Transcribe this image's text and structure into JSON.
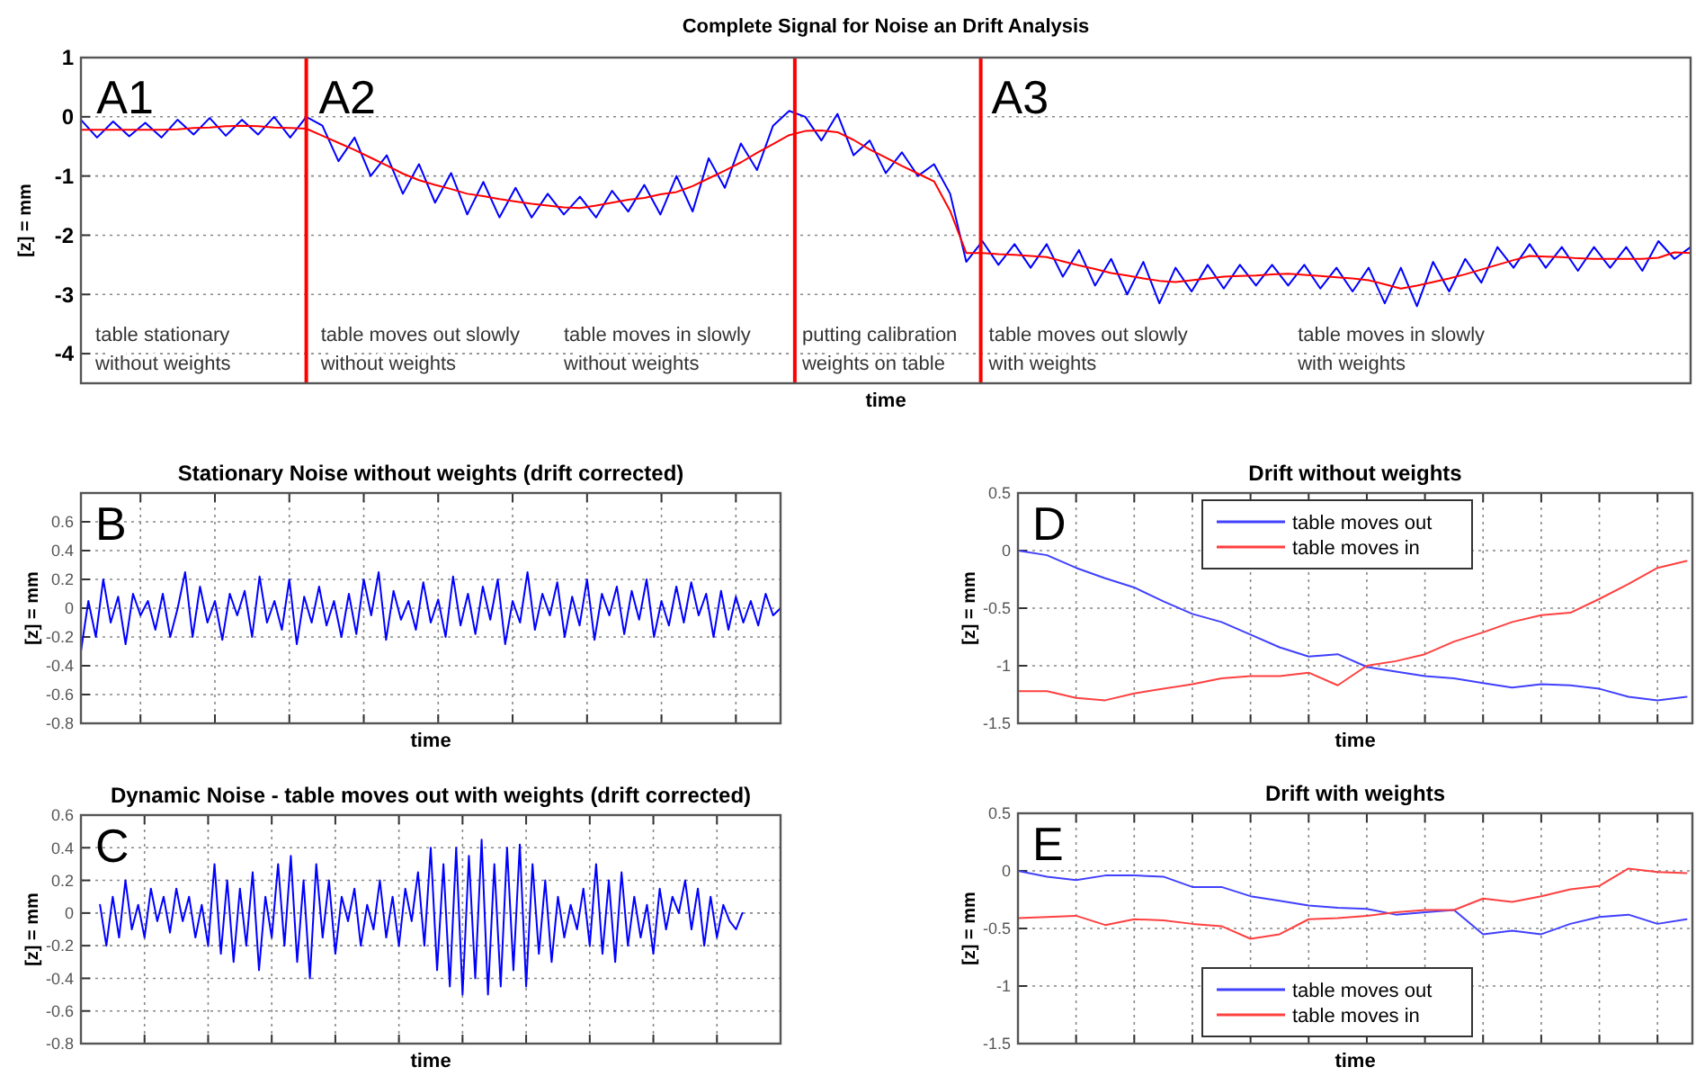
{
  "chart_data": [
    {
      "type": "line",
      "title": "Complete Signal for Noise an Drift Analysis",
      "xlabel": "time",
      "ylabel": "[z] = mm",
      "ylim": [
        -4.5,
        1
      ],
      "yticks": [
        -4,
        -3,
        -2,
        -1,
        0,
        1
      ],
      "grid": "y",
      "tick_labels": "y",
      "categories": [
        null,
        null,
        null,
        null,
        null,
        null,
        null,
        null,
        null,
        null,
        null,
        null,
        null,
        null,
        null,
        null,
        null,
        null,
        null,
        null,
        null,
        null,
        null,
        null,
        null,
        null,
        null,
        null,
        null,
        null,
        null,
        null,
        null,
        null,
        null,
        null,
        null,
        null,
        null,
        null,
        null,
        null,
        null,
        null,
        null,
        null,
        null,
        null,
        null,
        null,
        null,
        null,
        null,
        null,
        null,
        null,
        null,
        null,
        null,
        null,
        null,
        null,
        null,
        null,
        null,
        null,
        null,
        null,
        null,
        null,
        null,
        null,
        null,
        null,
        null,
        null,
        null,
        null,
        null,
        null,
        null,
        null,
        null,
        null,
        null,
        null,
        null,
        null,
        null,
        null,
        null,
        null,
        null,
        null,
        null,
        null,
        null,
        null,
        null,
        null,
        null
      ],
      "series": [
        {
          "color": "#0000ff",
          "values": [
            -0.05,
            -0.35,
            -0.08,
            -0.33,
            -0.1,
            -0.35,
            -0.05,
            -0.3,
            -0.02,
            -0.32,
            -0.05,
            -0.3,
            0.0,
            -0.35,
            0.0,
            -0.15,
            -0.75,
            -0.35,
            -1.0,
            -0.65,
            -1.3,
            -0.8,
            -1.45,
            -0.95,
            -1.65,
            -1.1,
            -1.7,
            -1.2,
            -1.7,
            -1.3,
            -1.65,
            -1.35,
            -1.7,
            -1.25,
            -1.6,
            -1.15,
            -1.65,
            -1.0,
            -1.6,
            -0.7,
            -1.2,
            -0.45,
            -0.9,
            -0.15,
            0.1,
            0.0,
            -0.4,
            0.05,
            -0.65,
            -0.4,
            -0.95,
            -0.6,
            -1.0,
            -0.8,
            -1.3,
            -2.45,
            -2.1,
            -2.5,
            -2.15,
            -2.55,
            -2.15,
            -2.7,
            -2.25,
            -2.85,
            -2.4,
            -3.0,
            -2.45,
            -3.15,
            -2.55,
            -2.95,
            -2.5,
            -2.9,
            -2.5,
            -2.85,
            -2.5,
            -2.85,
            -2.5,
            -2.9,
            -2.55,
            -2.95,
            -2.55,
            -3.15,
            -2.55,
            -3.2,
            -2.45,
            -2.95,
            -2.4,
            -2.8,
            -2.2,
            -2.55,
            -2.15,
            -2.55,
            -2.2,
            -2.6,
            -2.2,
            -2.55,
            -2.2,
            -2.6,
            -2.1,
            -2.4,
            -2.2
          ]
        },
        {
          "color": "#ff0000",
          "values": [
            -0.22,
            -0.22,
            -0.22,
            -0.22,
            -0.22,
            -0.22,
            -0.21,
            -0.19,
            -0.18,
            -0.16,
            -0.15,
            -0.16,
            -0.18,
            -0.19,
            -0.2,
            -0.32,
            -0.44,
            -0.56,
            -0.69,
            -0.82,
            -0.96,
            -1.07,
            -1.15,
            -1.22,
            -1.3,
            -1.34,
            -1.39,
            -1.43,
            -1.47,
            -1.5,
            -1.53,
            -1.54,
            -1.5,
            -1.45,
            -1.4,
            -1.37,
            -1.31,
            -1.27,
            -1.17,
            -1.04,
            -0.91,
            -0.77,
            -0.61,
            -0.46,
            -0.31,
            -0.24,
            -0.23,
            -0.26,
            -0.39,
            -0.55,
            -0.69,
            -0.83,
            -0.96,
            -1.09,
            -1.59,
            -2.3,
            -2.3,
            -2.32,
            -2.33,
            -2.35,
            -2.37,
            -2.44,
            -2.51,
            -2.57,
            -2.64,
            -2.68,
            -2.73,
            -2.77,
            -2.79,
            -2.76,
            -2.73,
            -2.7,
            -2.69,
            -2.68,
            -2.66,
            -2.65,
            -2.67,
            -2.69,
            -2.71,
            -2.73,
            -2.76,
            -2.83,
            -2.9,
            -2.85,
            -2.79,
            -2.73,
            -2.66,
            -2.58,
            -2.5,
            -2.42,
            -2.35,
            -2.36,
            -2.37,
            -2.39,
            -2.4,
            -2.4,
            -2.4,
            -2.4,
            -2.38,
            -2.29,
            -2.3
          ]
        }
      ],
      "annotations": [
        "A1",
        "A2",
        "A3",
        "table stationary\nwithout weights",
        "table moves out slowly\nwithout weights",
        "table moves in slowly\nwithout weights",
        "putting calibration\nweights on table",
        "table moves out slowly\nwith weights",
        "table moves in slowly\nwith weights"
      ]
    },
    {
      "type": "line",
      "title": "Stationary Noise without weights (drift corrected)",
      "xlabel": "time",
      "ylabel": "[z] = mm",
      "ylim": [
        -0.8,
        0.8
      ],
      "yticks": [
        -0.8,
        -0.6,
        -0.4,
        -0.2,
        0,
        0.2,
        0.4,
        0.6
      ],
      "grid": true,
      "tick_labels": "y",
      "categories": [
        null,
        null,
        null,
        null,
        null,
        null,
        null,
        null,
        null,
        null,
        null,
        null,
        null,
        null,
        null,
        null,
        null,
        null,
        null,
        null,
        null,
        null,
        null,
        null,
        null,
        null,
        null,
        null,
        null,
        null,
        null,
        null,
        null,
        null,
        null,
        null,
        null,
        null,
        null,
        null,
        null,
        null,
        null,
        null,
        null,
        null,
        null,
        null,
        null,
        null,
        null,
        null,
        null,
        null,
        null,
        null,
        null,
        null,
        null,
        null,
        null,
        null,
        null,
        null,
        null,
        null,
        null,
        null,
        null,
        null,
        null,
        null,
        null,
        null,
        null,
        null,
        null,
        null,
        null,
        null,
        null,
        null,
        null,
        null,
        null,
        null,
        null,
        null,
        null,
        null,
        null,
        null,
        null,
        null,
        null
      ],
      "series": [
        {
          "color": "#0000ff",
          "values": [
            -0.3,
            0.05,
            -0.2,
            0.2,
            -0.1,
            0.08,
            -0.25,
            0.1,
            -0.05,
            0.05,
            -0.15,
            0.1,
            -0.2,
            0.0,
            0.25,
            -0.2,
            0.15,
            -0.1,
            0.05,
            -0.22,
            0.1,
            -0.05,
            0.12,
            -0.2,
            0.22,
            -0.1,
            0.05,
            -0.15,
            0.2,
            -0.25,
            0.08,
            -0.1,
            0.15,
            -0.12,
            0.05,
            -0.2,
            0.1,
            -0.18,
            0.2,
            -0.05,
            0.25,
            -0.22,
            0.12,
            -0.08,
            0.05,
            -0.15,
            0.18,
            -0.1,
            0.06,
            -0.2,
            0.22,
            -0.12,
            0.1,
            -0.18,
            0.15,
            -0.08,
            0.2,
            -0.25,
            0.05,
            -0.1,
            0.25,
            -0.15,
            0.1,
            -0.05,
            0.18,
            -0.2,
            0.08,
            -0.12,
            0.2,
            -0.22,
            0.1,
            -0.05,
            0.15,
            -0.18,
            0.12,
            -0.08,
            0.2,
            -0.2,
            0.05,
            -0.12,
            0.15,
            -0.1,
            0.18,
            -0.05,
            0.1,
            -0.2,
            0.12,
            -0.15,
            0.08,
            -0.1,
            0.05,
            -0.12,
            0.1,
            -0.05,
            0.0
          ]
        }
      ],
      "annotations": [
        "B"
      ]
    },
    {
      "type": "line",
      "title": "Dynamic Noise - table moves out with weights (drift corrected)",
      "xlabel": "time",
      "ylabel": "[z] = mm",
      "ylim": [
        -0.8,
        0.6
      ],
      "yticks": [
        -0.8,
        -0.6,
        -0.4,
        -0.2,
        0,
        0.2,
        0.4,
        0.6
      ],
      "grid": true,
      "tick_labels": "y",
      "categories": [
        null,
        null,
        null,
        null,
        null,
        null,
        null,
        null,
        null,
        null,
        null,
        null,
        null,
        null,
        null,
        null,
        null,
        null,
        null,
        null,
        null,
        null,
        null,
        null,
        null,
        null,
        null,
        null,
        null,
        null,
        null,
        null,
        null,
        null,
        null,
        null,
        null,
        null,
        null,
        null,
        null,
        null,
        null,
        null,
        null,
        null,
        null,
        null,
        null,
        null,
        null,
        null,
        null,
        null,
        null,
        null,
        null,
        null,
        null,
        null,
        null,
        null,
        null,
        null,
        null,
        null,
        null,
        null,
        null,
        null,
        null,
        null,
        null,
        null,
        null,
        null,
        null,
        null,
        null,
        null,
        null,
        null,
        null,
        null,
        null,
        null,
        null,
        null,
        null,
        null,
        null,
        null,
        null,
        null,
        null,
        null,
        null,
        null,
        null,
        null,
        null,
        null,
        null,
        null,
        null,
        null,
        null,
        null,
        null,
        null,
        null
      ],
      "series": [
        {
          "color": "#0000ff",
          "values": [
            null,
            null,
            null,
            0.05,
            -0.2,
            0.1,
            -0.15,
            0.2,
            -0.1,
            0.05,
            -0.15,
            0.15,
            -0.05,
            0.1,
            -0.12,
            0.15,
            -0.05,
            0.1,
            -0.15,
            0.05,
            -0.2,
            0.3,
            -0.25,
            0.2,
            -0.3,
            0.15,
            -0.2,
            0.25,
            -0.35,
            0.1,
            -0.15,
            0.3,
            -0.2,
            0.35,
            -0.3,
            0.2,
            -0.4,
            0.3,
            -0.15,
            0.2,
            -0.25,
            0.1,
            -0.05,
            0.15,
            -0.2,
            0.05,
            -0.1,
            0.2,
            -0.15,
            0.1,
            -0.2,
            0.15,
            -0.05,
            0.25,
            -0.2,
            0.4,
            -0.35,
            0.3,
            -0.45,
            0.4,
            -0.5,
            0.35,
            -0.4,
            0.45,
            -0.5,
            0.3,
            -0.45,
            0.4,
            -0.35,
            0.42,
            -0.45,
            0.3,
            -0.25,
            0.2,
            -0.3,
            0.1,
            -0.15,
            0.05,
            -0.1,
            0.15,
            -0.2,
            0.3,
            -0.25,
            0.2,
            -0.3,
            0.25,
            -0.2,
            0.1,
            -0.15,
            0.05,
            -0.25,
            0.15,
            -0.1,
            0.1,
            0.0,
            0.2,
            -0.1,
            0.15,
            -0.2,
            0.1,
            -0.15,
            0.05,
            -0.05,
            -0.1,
            0.0,
            null,
            null,
            null,
            null,
            null,
            null
          ]
        }
      ],
      "annotations": [
        "C"
      ]
    },
    {
      "type": "line",
      "title": "Drift without weights",
      "xlabel": "time",
      "ylabel": "[z] = mm",
      "ylim": [
        -1.5,
        0.5
      ],
      "yticks": [
        -1.5,
        -1,
        -0.5,
        0,
        0.5
      ],
      "grid": true,
      "tick_labels": "y",
      "legend": "top",
      "categories": [
        null,
        null,
        null,
        null,
        null,
        null,
        null,
        null,
        null,
        null,
        null,
        null,
        null,
        null,
        null,
        null,
        null,
        null,
        null,
        null,
        null,
        null,
        null,
        null
      ],
      "series": [
        {
          "name": "table moves out",
          "color": "#4040ff",
          "values": [
            0,
            -0.04,
            -0.15,
            -0.24,
            -0.32,
            -0.44,
            -0.55,
            -0.62,
            -0.73,
            -0.84,
            -0.92,
            -0.9,
            -1.01,
            -1.05,
            -1.09,
            -1.11,
            -1.15,
            -1.19,
            -1.16,
            -1.17,
            -1.2,
            -1.27,
            -1.3,
            -1.27
          ]
        },
        {
          "name": "table moves in",
          "color": "#ff4040",
          "values": [
            -1.22,
            -1.22,
            -1.28,
            -1.3,
            -1.24,
            -1.2,
            -1.16,
            -1.11,
            -1.09,
            -1.09,
            -1.06,
            -1.17,
            -1.0,
            -0.96,
            -0.9,
            -0.79,
            -0.71,
            -0.62,
            -0.56,
            -0.54,
            -0.42,
            -0.29,
            -0.15,
            -0.09
          ]
        }
      ],
      "annotations": [
        "D"
      ]
    },
    {
      "type": "line",
      "title": "Drift with weights",
      "xlabel": "time",
      "ylabel": "[z] = mm",
      "ylim": [
        -1.5,
        0.5
      ],
      "yticks": [
        -1.5,
        -1,
        -0.5,
        0,
        0.5
      ],
      "grid": true,
      "tick_labels": "y",
      "legend": "bottom",
      "categories": [
        null,
        null,
        null,
        null,
        null,
        null,
        null,
        null,
        null,
        null,
        null,
        null,
        null,
        null,
        null,
        null,
        null,
        null,
        null,
        null,
        null,
        null,
        null,
        null
      ],
      "series": [
        {
          "name": "table moves out",
          "color": "#4040ff",
          "values": [
            0,
            -0.05,
            -0.08,
            -0.04,
            -0.04,
            -0.05,
            -0.14,
            -0.14,
            -0.22,
            -0.26,
            -0.3,
            -0.32,
            -0.33,
            -0.38,
            -0.36,
            -0.34,
            -0.55,
            -0.52,
            -0.55,
            -0.46,
            -0.4,
            -0.38,
            -0.46,
            -0.42
          ]
        },
        {
          "name": "table moves in",
          "color": "#ff4040",
          "values": [
            -0.41,
            -0.4,
            -0.39,
            -0.47,
            -0.42,
            -0.43,
            -0.46,
            -0.48,
            -0.59,
            -0.55,
            -0.42,
            -0.41,
            -0.39,
            -0.36,
            -0.34,
            -0.34,
            -0.24,
            -0.27,
            -0.22,
            -0.16,
            -0.13,
            0.02,
            -0.01,
            -0.02
          ]
        }
      ],
      "annotations": [
        "E"
      ]
    }
  ]
}
